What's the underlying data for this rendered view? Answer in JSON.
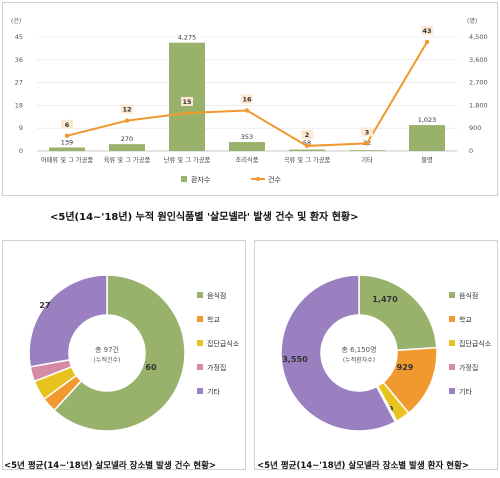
{
  "chart_data": [
    {
      "type": "bar",
      "caption_main": "<5년(14~'18년) 누적 원인식품별 '살모넬라' 발생 건수 및 환자 현황>",
      "y_left_unit": "(건)",
      "y_right_unit": "(명)",
      "ylim_left": [
        0,
        45
      ],
      "yticks_left": [
        0,
        9,
        18,
        27,
        36,
        45
      ],
      "ylim_right": [
        0,
        4500
      ],
      "yticks_right": [
        "0",
        "900",
        "1,800",
        "2,700",
        "3,600",
        "4,500"
      ],
      "categories": [
        "어패류 및 그 가공품",
        "육류 및 그 가공품",
        "난류 및 그 가공품",
        "조리식품",
        "곡류 및 그 가공품",
        "기타",
        "불명"
      ],
      "series": [
        {
          "name": "환자수",
          "kind": "bar",
          "axis": "right",
          "color": "#98b26b",
          "values": [
            139,
            270,
            4275,
            353,
            58,
            32,
            1023
          ],
          "labels": [
            "139",
            "270",
            "4,275",
            "353",
            "58",
            "32",
            "1,023"
          ]
        },
        {
          "name": "건수",
          "kind": "line",
          "axis": "left",
          "color": "#f0992f",
          "values": [
            6,
            12,
            15,
            16,
            2,
            3,
            43
          ],
          "labels": [
            "6",
            "12",
            "15",
            "16",
            "2",
            "3",
            "43"
          ]
        }
      ]
    },
    {
      "type": "pie",
      "donut": true,
      "caption": "<5년 평균(14~'18년) 살모넬라 장소별 발생 건수 현황>",
      "center_label": "총 97건",
      "center_sub": "(누적건수)",
      "categories": [
        "음식점",
        "학교",
        "집단급식소",
        "가정집",
        "기타"
      ],
      "values": [
        60,
        3,
        4,
        3,
        27
      ],
      "colors": [
        "#98b26b",
        "#f0992f",
        "#e8c21e",
        "#d68aa6",
        "#9a7fc1"
      ]
    },
    {
      "type": "pie",
      "donut": true,
      "caption": "<5년 평균(14~'18년) 살모넬라 장소별 발생 환자 현황>",
      "center_label": "총 6,150명",
      "center_sub": "(누적환자수)",
      "categories": [
        "음식점",
        "학교",
        "집단급식소",
        "가정집",
        "기타"
      ],
      "values": [
        1470,
        929,
        179,
        22,
        3550
      ],
      "value_labels": [
        "1,470",
        "929",
        "179",
        "22",
        "3,550"
      ],
      "colors": [
        "#98b26b",
        "#f0992f",
        "#e8c21e",
        "#d68aa6",
        "#9a7fc1"
      ]
    }
  ]
}
